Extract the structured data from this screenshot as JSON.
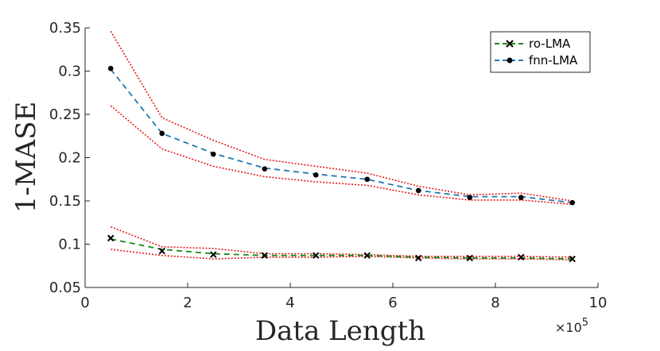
{
  "chart_data": {
    "type": "line",
    "title": "",
    "xlabel": "Data Length",
    "ylabel": "1-MASE",
    "x_multiplier_base": "×10",
    "x_multiplier_exp": "5",
    "xlim": [
      0,
      10
    ],
    "ylim": [
      0.05,
      0.35
    ],
    "x_ticks": [
      0,
      2,
      4,
      6,
      8,
      10
    ],
    "x_tick_labels": [
      "0",
      "2",
      "4",
      "6",
      "8",
      "10"
    ],
    "y_ticks": [
      0.05,
      0.1,
      0.15,
      0.2,
      0.25,
      0.3,
      0.35
    ],
    "y_tick_labels": [
      "0.05",
      "0.1",
      "0.15",
      "0.2",
      "0.25",
      "0.3",
      "0.35"
    ],
    "grid": false,
    "legend_position": "top-right",
    "x": [
      0.5,
      1.5,
      2.5,
      3.5,
      4.5,
      5.5,
      6.5,
      7.5,
      8.5,
      9.5
    ],
    "series": [
      {
        "name": "ro-LMA",
        "color": "#1a8a1a",
        "marker": "x",
        "mean_line": [
          0.106,
          0.094,
          0.089,
          0.087,
          0.087,
          0.087,
          0.085,
          0.084,
          0.084,
          0.083
        ],
        "points": [
          0.107,
          0.092,
          0.088,
          0.087,
          0.087,
          0.087,
          0.084,
          0.084,
          0.085,
          0.083
        ],
        "upper": [
          0.12,
          0.097,
          0.095,
          0.089,
          0.089,
          0.088,
          0.086,
          0.086,
          0.086,
          0.085
        ],
        "lower": [
          0.094,
          0.087,
          0.083,
          0.085,
          0.085,
          0.086,
          0.084,
          0.083,
          0.083,
          0.082
        ]
      },
      {
        "name": "fnn-LMA",
        "color": "#1f77b4",
        "marker": "dot",
        "mean_line": [
          0.302,
          0.228,
          0.205,
          0.188,
          0.181,
          0.175,
          0.162,
          0.155,
          0.155,
          0.148
        ],
        "points": [
          0.303,
          0.228,
          0.204,
          0.187,
          0.18,
          0.175,
          0.162,
          0.154,
          0.154,
          0.148
        ],
        "upper": [
          0.346,
          0.246,
          0.22,
          0.198,
          0.19,
          0.182,
          0.167,
          0.157,
          0.159,
          0.15
        ],
        "lower": [
          0.26,
          0.21,
          0.19,
          0.178,
          0.172,
          0.168,
          0.157,
          0.151,
          0.151,
          0.146
        ]
      }
    ],
    "bounds_color": "#e41a1c"
  }
}
